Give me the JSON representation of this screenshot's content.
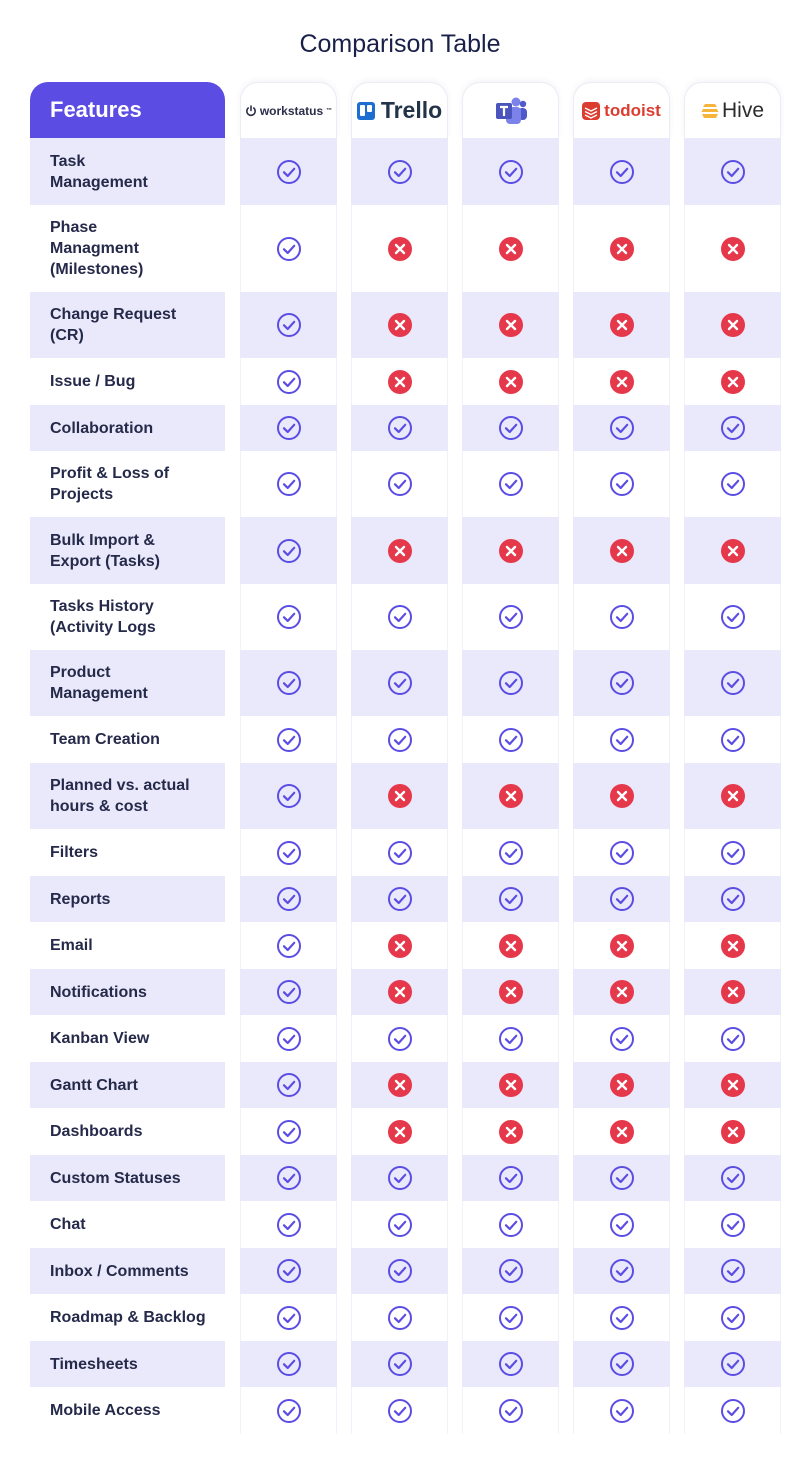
{
  "title": "Comparison Table",
  "header": {
    "features_label": "Features",
    "tools": [
      {
        "name": "workstatus",
        "label": "workstatus",
        "tm": "™",
        "icon": "power-icon"
      },
      {
        "name": "trello",
        "label": "Trello",
        "icon": "trello-icon"
      },
      {
        "name": "teams",
        "label": "",
        "icon": "microsoft-teams-icon"
      },
      {
        "name": "todoist",
        "label": "todoist",
        "icon": "todoist-icon"
      },
      {
        "name": "hive",
        "label": "Hive",
        "icon": "hive-icon"
      }
    ]
  },
  "colors": {
    "accent": "#5b4de3",
    "check": "#5b4de3",
    "cross": "#e5384a",
    "shade": "#e9e9fb"
  },
  "rows": [
    {
      "feature": "Task\nManagement",
      "values": [
        true,
        true,
        true,
        true,
        true
      ]
    },
    {
      "feature": "Phase\nManagment\n(Milestones)",
      "values": [
        true,
        false,
        false,
        false,
        false
      ]
    },
    {
      "feature": "Change Request\n(CR)",
      "values": [
        true,
        false,
        false,
        false,
        false
      ]
    },
    {
      "feature": "Issue / Bug",
      "values": [
        true,
        false,
        false,
        false,
        false
      ]
    },
    {
      "feature": "Collaboration",
      "values": [
        true,
        true,
        true,
        true,
        true
      ]
    },
    {
      "feature": "Profit & Loss of\nProjects",
      "values": [
        true,
        true,
        true,
        true,
        true
      ]
    },
    {
      "feature": "Bulk Import &\nExport (Tasks)",
      "values": [
        true,
        false,
        false,
        false,
        false
      ]
    },
    {
      "feature": "Tasks History\n(Activity Logs",
      "values": [
        true,
        true,
        true,
        true,
        true
      ]
    },
    {
      "feature": "Product\nManagement",
      "values": [
        true,
        true,
        true,
        true,
        true
      ]
    },
    {
      "feature": "Team Creation",
      "values": [
        true,
        true,
        true,
        true,
        true
      ]
    },
    {
      "feature": "Planned vs. actual\nhours & cost",
      "values": [
        true,
        false,
        false,
        false,
        false
      ]
    },
    {
      "feature": "Filters",
      "values": [
        true,
        true,
        true,
        true,
        true
      ]
    },
    {
      "feature": "Reports",
      "values": [
        true,
        true,
        true,
        true,
        true
      ]
    },
    {
      "feature": "Email",
      "values": [
        true,
        false,
        false,
        false,
        false
      ]
    },
    {
      "feature": "Notifications",
      "values": [
        true,
        false,
        false,
        false,
        false
      ]
    },
    {
      "feature": "Kanban View",
      "values": [
        true,
        true,
        true,
        true,
        true
      ]
    },
    {
      "feature": "Gantt Chart",
      "values": [
        true,
        false,
        false,
        false,
        false
      ]
    },
    {
      "feature": "Dashboards",
      "values": [
        true,
        false,
        false,
        false,
        false
      ]
    },
    {
      "feature": "Custom Statuses",
      "values": [
        true,
        true,
        true,
        true,
        true
      ]
    },
    {
      "feature": "Chat",
      "values": [
        true,
        true,
        true,
        true,
        true
      ]
    },
    {
      "feature": "Inbox / Comments",
      "values": [
        true,
        true,
        true,
        true,
        true
      ]
    },
    {
      "feature": "Roadmap & Backlog",
      "values": [
        true,
        true,
        true,
        true,
        true
      ]
    },
    {
      "feature": "Timesheets",
      "values": [
        true,
        true,
        true,
        true,
        true
      ]
    },
    {
      "feature": "Mobile Access",
      "values": [
        true,
        true,
        true,
        true,
        true
      ]
    }
  ]
}
